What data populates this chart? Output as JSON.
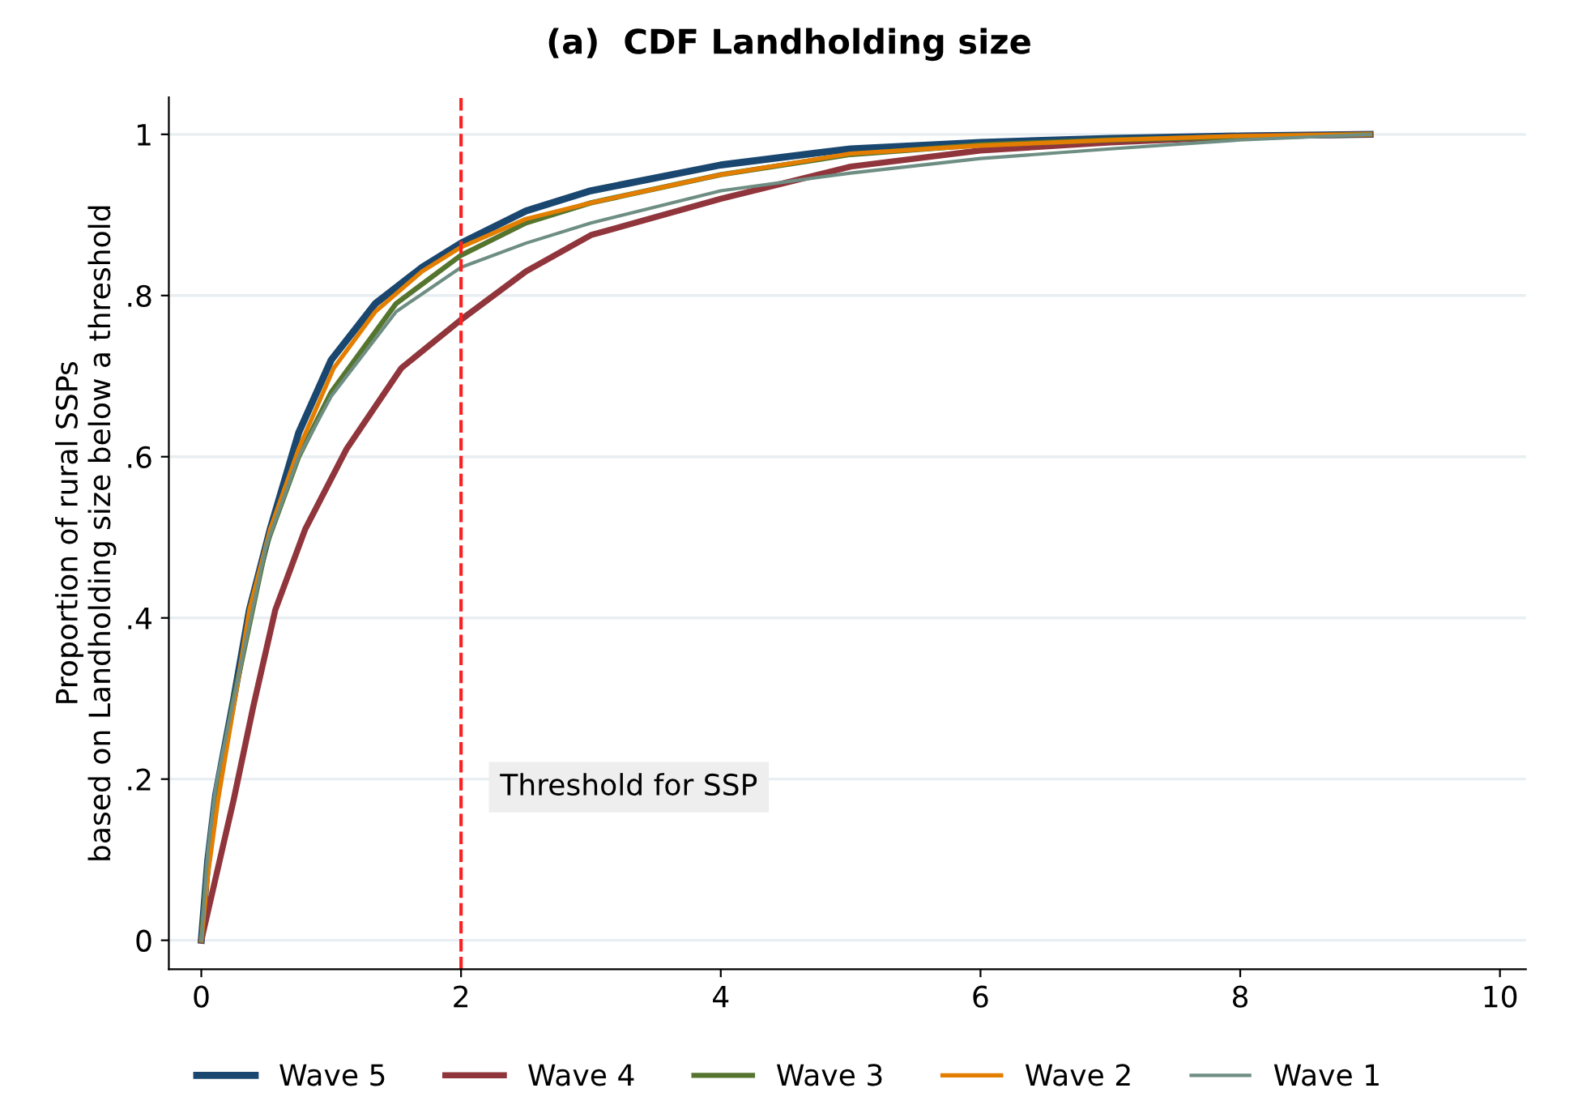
{
  "chart_data": {
    "type": "line",
    "title": "(a)  CDF Landholding size",
    "ylabel": "Proportion of rural SSPs\nbased on Landholding size below a threshold",
    "series": [
      {
        "name": "Wave 5",
        "color": "#1a476f",
        "x": [
          0,
          0.05,
          0.11,
          0.25,
          0.37,
          0.53,
          0.75,
          1.0,
          1.34,
          1.7,
          2,
          2.5,
          3,
          4,
          5,
          6,
          7,
          8,
          9
        ],
        "values": [
          0,
          0.1,
          0.18,
          0.3,
          0.41,
          0.51,
          0.63,
          0.72,
          0.79,
          0.835,
          0.865,
          0.905,
          0.93,
          0.962,
          0.982,
          0.99,
          0.995,
          0.998,
          1
        ]
      },
      {
        "name": "Wave 4",
        "color": "#90353b",
        "x": [
          0,
          0.1,
          0.25,
          0.4,
          0.57,
          0.8,
          1.12,
          1.54,
          2,
          2.5,
          3,
          4,
          5,
          6,
          7,
          8,
          9
        ],
        "values": [
          0,
          0.07,
          0.175,
          0.29,
          0.41,
          0.51,
          0.61,
          0.71,
          0.77,
          0.83,
          0.875,
          0.92,
          0.96,
          0.98,
          0.99,
          0.997,
          1
        ]
      },
      {
        "name": "Wave 3",
        "color": "#55752f",
        "x": [
          0,
          0.05,
          0.11,
          0.25,
          0.5,
          0.75,
          1.0,
          1.5,
          2,
          2.5,
          3,
          4,
          5,
          6,
          7,
          8,
          9
        ],
        "values": [
          0,
          0.1,
          0.18,
          0.3,
          0.49,
          0.6,
          0.68,
          0.79,
          0.85,
          0.89,
          0.915,
          0.95,
          0.975,
          0.987,
          0.993,
          0.997,
          1
        ]
      },
      {
        "name": "Wave 2",
        "color": "#e37e00",
        "x": [
          0,
          0.05,
          0.13,
          0.25,
          0.37,
          0.53,
          0.75,
          1.02,
          1.34,
          1.7,
          2,
          2.5,
          3,
          4,
          5,
          6,
          7,
          8,
          9
        ],
        "values": [
          0,
          0.08,
          0.175,
          0.29,
          0.41,
          0.51,
          0.61,
          0.71,
          0.78,
          0.83,
          0.86,
          0.895,
          0.915,
          0.95,
          0.976,
          0.986,
          0.993,
          0.998,
          1
        ]
      },
      {
        "name": "Wave 1",
        "color": "#6e8e84",
        "x": [
          0,
          0.05,
          0.11,
          0.25,
          0.5,
          0.75,
          1.0,
          1.5,
          2,
          2.5,
          3,
          4,
          5,
          6,
          7,
          8,
          9
        ],
        "values": [
          0,
          0.11,
          0.19,
          0.3,
          0.49,
          0.6,
          0.675,
          0.78,
          0.835,
          0.865,
          0.89,
          0.93,
          0.952,
          0.97,
          0.982,
          0.993,
          1
        ]
      }
    ],
    "xlim": [
      -0.25,
      10.2
    ],
    "xticks": [
      0,
      2,
      4,
      6,
      8,
      10
    ],
    "ylim": [
      -0.036,
      1.046
    ],
    "yticks": [
      {
        "value": 0,
        "label": "0"
      },
      {
        "value": 0.2,
        "label": ".2"
      },
      {
        "value": 0.4,
        "label": ".4"
      },
      {
        "value": 0.6,
        "label": ".6"
      },
      {
        "value": 0.8,
        "label": ".8"
      },
      {
        "value": 1,
        "label": "1"
      }
    ],
    "ref_lines": [
      {
        "axis": "x",
        "value": 2,
        "label": "Threshold for SSP",
        "color": "#ff2020",
        "line_style": "dashed"
      }
    ],
    "grid": "y",
    "legend": "bottom",
    "marker": "none",
    "line_style": "solid"
  }
}
